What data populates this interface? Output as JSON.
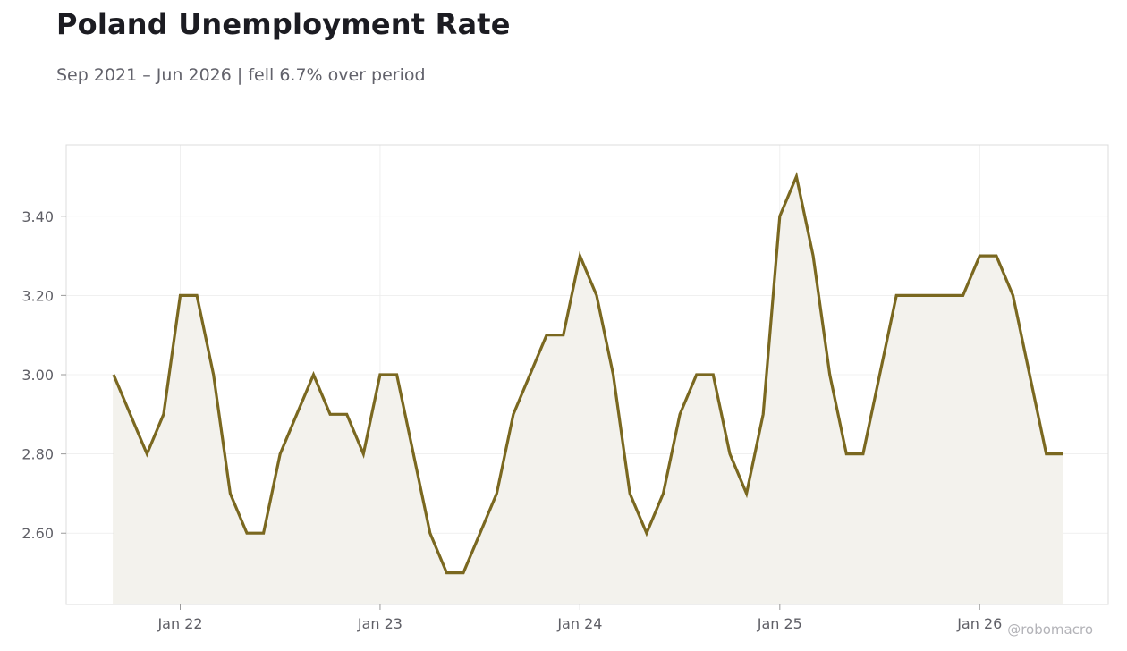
{
  "header": {
    "title": "Poland Unemployment Rate",
    "subtitle": "Sep 2021 – Jun 2026 | fell 6.7% over period"
  },
  "watermark": "@robomacro",
  "colors": {
    "line": "#7a6820",
    "fill": "#f3f2ed",
    "grid": "#ececec",
    "frame": "#dcdcdc",
    "tick_text": "#5f5f66"
  },
  "chart_data": {
    "type": "area",
    "title": "Poland Unemployment Rate",
    "xlabel": "",
    "ylabel": "",
    "ylim": [
      2.42,
      3.58
    ],
    "grid": true,
    "y_ticks": [
      "2.60",
      "2.80",
      "3.00",
      "3.20",
      "3.40"
    ],
    "x_ticks": [
      "Jan 22",
      "Jan 23",
      "Jan 24",
      "Jan 25",
      "Jan 26"
    ],
    "x": [
      "2021-09",
      "2021-10",
      "2021-11",
      "2021-12",
      "2022-01",
      "2022-02",
      "2022-03",
      "2022-04",
      "2022-05",
      "2022-06",
      "2022-07",
      "2022-08",
      "2022-09",
      "2022-10",
      "2022-11",
      "2022-12",
      "2023-01",
      "2023-02",
      "2023-03",
      "2023-04",
      "2023-05",
      "2023-06",
      "2023-07",
      "2023-08",
      "2023-09",
      "2023-10",
      "2023-11",
      "2023-12",
      "2024-01",
      "2024-02",
      "2024-03",
      "2024-04",
      "2024-05",
      "2024-06",
      "2024-07",
      "2024-08",
      "2024-09",
      "2024-10",
      "2024-11",
      "2024-12",
      "2025-01",
      "2025-02",
      "2025-03",
      "2025-04",
      "2025-05",
      "2025-06",
      "2025-07",
      "2025-08",
      "2025-09",
      "2025-10",
      "2025-11",
      "2025-12",
      "2026-01",
      "2026-02",
      "2026-03",
      "2026-04",
      "2026-05",
      "2026-06"
    ],
    "series": [
      {
        "values": [
          3.0,
          2.9,
          2.8,
          2.9,
          3.2,
          3.2,
          3.0,
          2.7,
          2.6,
          2.6,
          2.8,
          2.9,
          3.0,
          2.9,
          2.9,
          2.8,
          3.0,
          3.0,
          2.8,
          2.6,
          2.5,
          2.5,
          2.6,
          2.7,
          2.9,
          3.0,
          3.1,
          3.1,
          3.3,
          3.2,
          3.0,
          2.7,
          2.6,
          2.7,
          2.9,
          3.0,
          3.0,
          2.8,
          2.7,
          2.9,
          3.4,
          3.5,
          3.3,
          3.0,
          2.8,
          2.8,
          3.0,
          3.2,
          3.2,
          3.2,
          3.2,
          3.2,
          3.3,
          3.3,
          3.2,
          3.0,
          2.8,
          2.8
        ]
      }
    ]
  }
}
